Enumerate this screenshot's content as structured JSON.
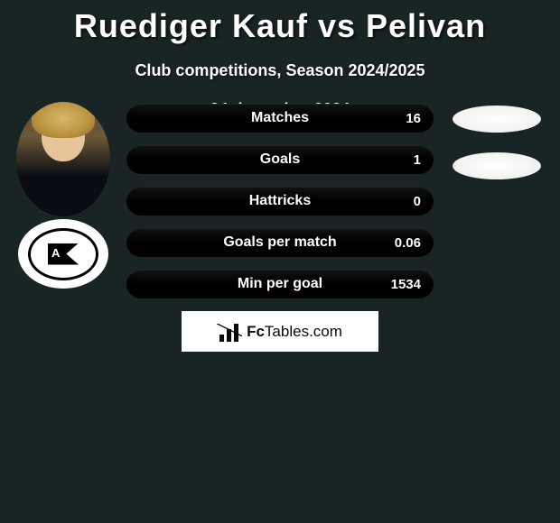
{
  "title": "Ruediger Kauf vs Pelivan",
  "subtitle": "Club competitions, Season 2024/2025",
  "date": "24 december 2024",
  "brand": {
    "prefix": "Fc",
    "suffix": "Tables.com"
  },
  "colors": {
    "background": "#192524",
    "bar_fill": "#000000",
    "text": "#ffffff",
    "brand_box": "#ffffff",
    "brand_text": "#0a0a0a",
    "oval_fill": "#ffffff"
  },
  "stats": [
    {
      "label": "Matches",
      "value": "16"
    },
    {
      "label": "Goals",
      "value": "1"
    },
    {
      "label": "Hattricks",
      "value": "0"
    },
    {
      "label": "Goals per match",
      "value": "0.06"
    },
    {
      "label": "Min per goal",
      "value": "1534"
    }
  ],
  "right_ovals_count": 2
}
